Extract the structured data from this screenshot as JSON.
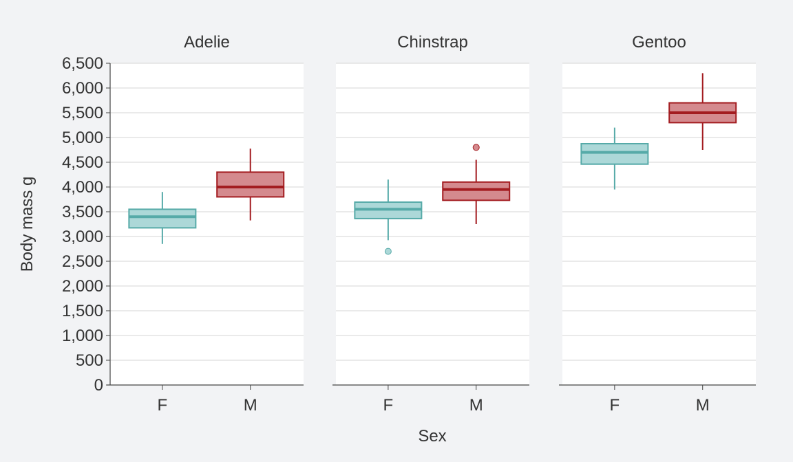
{
  "chart_data": {
    "type": "boxplot",
    "facets": [
      "Adelie",
      "Chinstrap",
      "Gentoo"
    ],
    "categories": [
      "F",
      "M"
    ],
    "xlabel": "Sex",
    "ylabel": "Body mass g",
    "ylim": [
      0,
      6500
    ],
    "yticks": [
      0,
      500,
      1000,
      1500,
      2000,
      2500,
      3000,
      3500,
      4000,
      4500,
      5000,
      5500,
      6000,
      6500
    ],
    "ytick_labels": [
      "0",
      "500",
      "1,000",
      "1,500",
      "2,000",
      "2,500",
      "3,000",
      "3,500",
      "4,000",
      "4,500",
      "5,000",
      "5,500",
      "6,000",
      "6,500"
    ],
    "grid": true,
    "colors": {
      "F": {
        "fill": "#acd8d8",
        "stroke": "#56aaa8"
      },
      "M": {
        "fill": "#d48a8e",
        "stroke": "#a31c20"
      }
    },
    "boxes": [
      {
        "facet": "Adelie",
        "category": "F",
        "min": 2850,
        "q1": 3175,
        "median": 3400,
        "q3": 3550,
        "max": 3900,
        "outliers": []
      },
      {
        "facet": "Adelie",
        "category": "M",
        "min": 3325,
        "q1": 3800,
        "median": 4000,
        "q3": 4300,
        "max": 4775,
        "outliers": []
      },
      {
        "facet": "Chinstrap",
        "category": "F",
        "min": 2925,
        "q1": 3362,
        "median": 3550,
        "q3": 3694,
        "max": 4150,
        "outliers": [
          2700
        ]
      },
      {
        "facet": "Chinstrap",
        "category": "M",
        "min": 3250,
        "q1": 3731,
        "median": 3950,
        "q3": 4100,
        "max": 4550,
        "outliers": [
          4800
        ]
      },
      {
        "facet": "Gentoo",
        "category": "F",
        "min": 3950,
        "q1": 4462,
        "median": 4700,
        "q3": 4875,
        "max": 5200,
        "outliers": []
      },
      {
        "facet": "Gentoo",
        "category": "M",
        "min": 4750,
        "q1": 5300,
        "median": 5500,
        "q3": 5700,
        "max": 6300,
        "outliers": []
      }
    ]
  }
}
